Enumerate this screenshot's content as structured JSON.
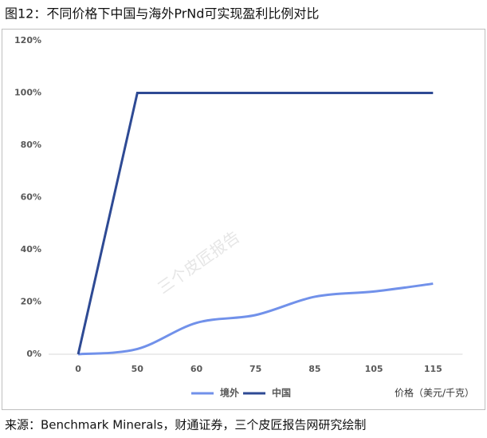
{
  "chart_data": {
    "type": "line",
    "title": "图12：不同价格下中国与海外PrNd可实现盈利比例对比",
    "categories": [
      "0",
      "50",
      "60",
      "75",
      "85",
      "105",
      "115"
    ],
    "series": [
      {
        "name": "境外",
        "color": "#7191ea",
        "smooth": true,
        "values": [
          0,
          2,
          12,
          15,
          22,
          24,
          27
        ]
      },
      {
        "name": "中国",
        "color": "#2e4a94",
        "smooth": false,
        "values": [
          0,
          100,
          100,
          100,
          100,
          100,
          100
        ]
      }
    ],
    "x_label": "价格（美元/千克）",
    "ylim": [
      0,
      120
    ],
    "yticks": [
      {
        "value": 0,
        "label": "0%"
      },
      {
        "value": 20,
        "label": "20%"
      },
      {
        "value": 40,
        "label": "40%"
      },
      {
        "value": 60,
        "label": "60%"
      },
      {
        "value": 80,
        "label": "80%"
      },
      {
        "value": 100,
        "label": "100%"
      },
      {
        "value": 120,
        "label": "120%"
      }
    ],
    "watermark": "三个皮匠报告",
    "source": "来源：Benchmark Minerals，财通证券，三个皮匠报告网研究绘制"
  }
}
